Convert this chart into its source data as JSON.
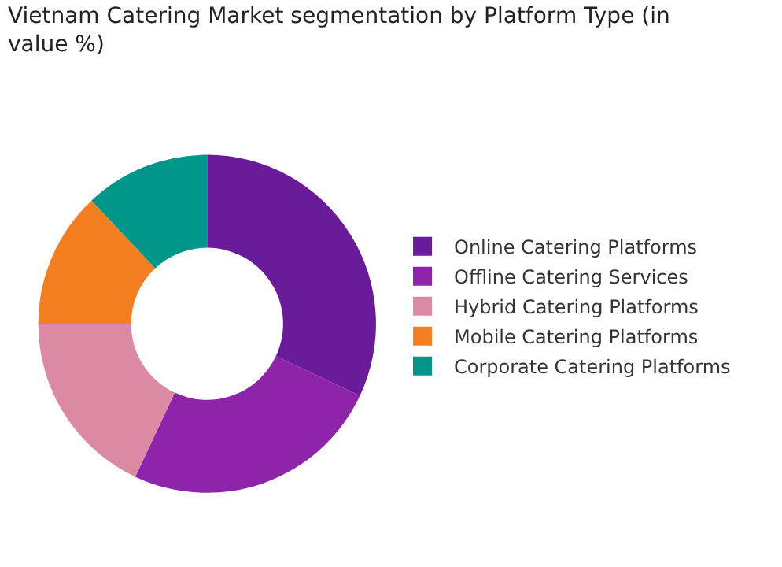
{
  "chart_data": {
    "type": "donut",
    "title": "Vietnam Catering Market segmentation by Platform Type (in value %)",
    "categories": [
      "Online Catering Platforms",
      "Offline Catering Services",
      "Hybrid Catering Platforms",
      "Mobile Catering Platforms",
      "Corporate Catering Platforms"
    ],
    "values": [
      32,
      25,
      18,
      13,
      12
    ],
    "colors": [
      "#6a1b9a",
      "#8e24aa",
      "#dc8aa4",
      "#f47f20",
      "#00968a"
    ],
    "legend": "right"
  }
}
